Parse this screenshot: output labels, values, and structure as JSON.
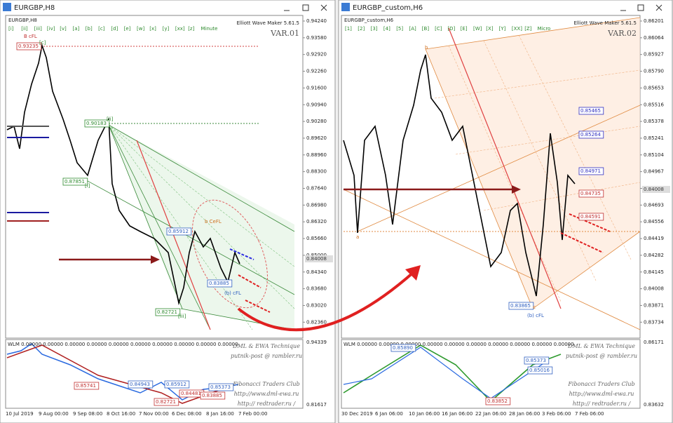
{
  "windows": [
    {
      "title": "EURGBP,H8",
      "symbol": "EURGBP,H8",
      "indicator": "Elliott Wave Maker 5.61.5",
      "var_label": "VAR.01",
      "toolbar": [
        "[i]",
        "[ii]",
        "[iii]",
        "[iv]",
        "[v]",
        "[a]",
        "[b]",
        "[c]",
        "[d]",
        "[e]",
        "[w]",
        "[x]",
        "[y]",
        "[xx]",
        "[z]",
        "Minute"
      ],
      "price_axis": [
        "0.94240",
        "0.93580",
        "0.92920",
        "0.92260",
        "0.91600",
        "0.90940",
        "0.90280",
        "0.89620",
        "0.88960",
        "0.88300",
        "0.87640",
        "0.86980",
        "0.86320",
        "0.85660",
        "0.85000",
        "0.84340",
        "0.83680",
        "0.83020",
        "0.82360"
      ],
      "current_price": "0.84008",
      "time_axis": [
        "10 Jul 2019",
        "9 Aug 00:00",
        "9 Sep 08:00",
        "8 Oct 16:00",
        "7 Nov 00:00",
        "6 Dec 08:00",
        "8 Jan 16:00",
        "7 Feb 00:00"
      ],
      "chart_labels": [
        "0.93235",
        "B cFL",
        "[c]",
        "0.90183",
        "[ii]",
        "0.87851",
        "[i]",
        "0.85912",
        "b CeFL",
        "0.83885",
        "(b) cFL",
        "0.82721",
        "[iii]"
      ],
      "sub": {
        "header": "WLM 0.00000 0.00000 0.00000 0.00000 0.00000 0.00000 0.00000 0.00000 0.00000 0.00000",
        "price_top": "0.94339",
        "price_bottom": "0.81617",
        "labels": [
          "0.85741",
          "0.84943",
          "0.82721",
          "0.85912",
          "0.84481",
          "0.83885",
          "0.85373"
        ],
        "credits": [
          "DML & EWA Technique",
          "putnik-post @ rambler.ru",
          "Fibonacci Traders Club",
          "http://www.dml-ewa.ru",
          "http:// redtrader.ru /"
        ]
      }
    },
    {
      "title": "EURGBP_custom,H6",
      "symbol": "EURGBP_custom,H6",
      "indicator": "Elliott Wave Maker 5.61.5",
      "var_label": "VAR.02",
      "toolbar": [
        "[1]",
        "[2]",
        "[3]",
        "[4]",
        "[5]",
        "[A]",
        "[B]",
        "[C]",
        "[D]",
        "[E]",
        "[W]",
        "[X]",
        "[Y]",
        "[XX]",
        "[Z]",
        "Micro"
      ],
      "price_axis": [
        "0.86201",
        "0.86064",
        "0.85927",
        "0.85790",
        "0.85653",
        "0.85516",
        "0.85378",
        "0.85241",
        "0.85104",
        "0.84967",
        "0.84830",
        "0.84693",
        "0.84556",
        "0.84419",
        "0.84282",
        "0.84145",
        "0.84008",
        "0.83871",
        "0.83734"
      ],
      "current_price": "0.84008",
      "time_axis": [
        "30 Dec 2019",
        "6 Jan 06:00",
        "10 Jan 06:00",
        "16 Jan 06:00",
        "22 Jan 06:00",
        "28 Jan 06:00",
        "3 Feb 06:00",
        "7 Feb 06:00"
      ],
      "chart_labels": [
        "0.85465",
        "0.85264",
        "0.84971",
        "0.84735",
        "0.84591",
        "0.83865",
        "(b) cFL",
        "b",
        "a",
        "c"
      ],
      "sub": {
        "header": "WLM 0.00000 0.00000 0.00000 0.00000 0.00000 0.00000 0.00000 0.00000 0.00000 0.00000",
        "price_top": "0.86171",
        "price_bottom": "0.83632",
        "labels": [
          "0.85890",
          "0.85373",
          "0.85016",
          "0.83852"
        ],
        "credits": [
          "DML & EWA Technique",
          "putnik-post @ rambler.ru",
          "Fibonacci Traders Club",
          "http://www.dml-ewa.ru",
          "http:// redtrader.ru /"
        ]
      }
    }
  ]
}
